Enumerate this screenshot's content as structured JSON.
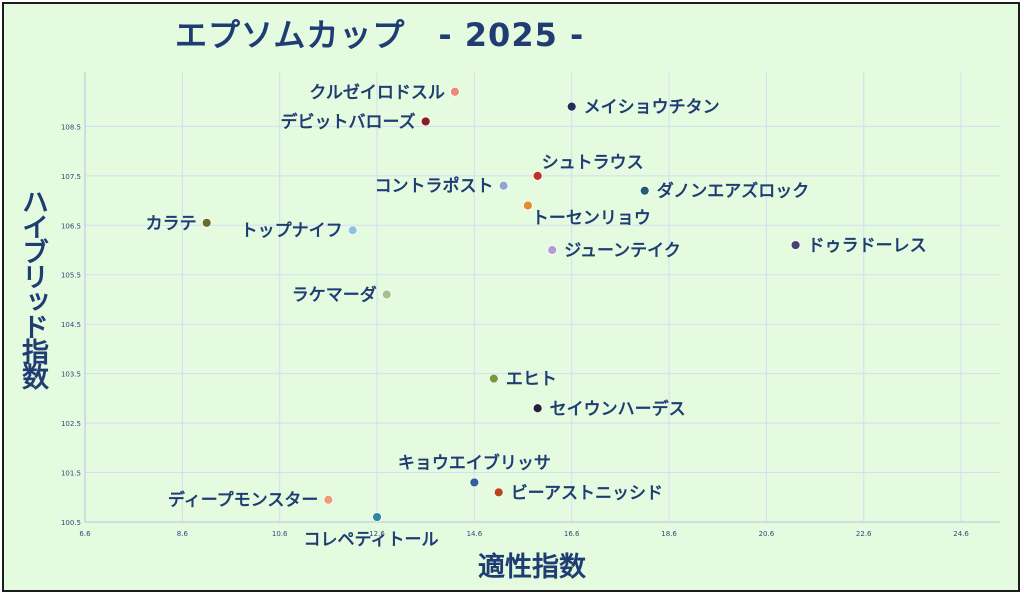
{
  "chart_data": {
    "type": "scatter",
    "title": "エプソムカップ　- 2025 -",
    "xlabel": "適性指数",
    "ylabel": "ハイブリッド指数",
    "xlim": [
      6.6,
      25.4
    ],
    "ylim": [
      100.5,
      109.6
    ],
    "xticks": [
      "6.6",
      "8.6",
      "10.6",
      "12.6",
      "14.6",
      "16.6",
      "18.6",
      "20.6",
      "22.6",
      "24.6"
    ],
    "yticks": [
      "100.5",
      "101.5",
      "102.5",
      "103.5",
      "104.5",
      "105.5",
      "106.5",
      "107.5",
      "108.5"
    ],
    "grid": true,
    "points": [
      {
        "label": "クルゼイロドスル",
        "x": 14.2,
        "y": 109.2,
        "color": "#ee8877",
        "label_side": "left"
      },
      {
        "label": "メイショウチタン",
        "x": 16.6,
        "y": 108.9,
        "color": "#1f2f55",
        "label_side": "right"
      },
      {
        "label": "デビットバローズ",
        "x": 13.6,
        "y": 108.6,
        "color": "#8b1e1e",
        "label_side": "left"
      },
      {
        "label": "シュトラウス",
        "x": 15.9,
        "y": 107.5,
        "color": "#c0302a",
        "label_side": "above-right"
      },
      {
        "label": "コントラポスト",
        "x": 15.2,
        "y": 107.3,
        "color": "#8fa6cf",
        "label_side": "left"
      },
      {
        "label": "ダノンエアズロック",
        "x": 18.1,
        "y": 107.2,
        "color": "#1f5f6e",
        "label_side": "right"
      },
      {
        "label": "トーセンリョウ",
        "x": 15.7,
        "y": 106.9,
        "color": "#e58a2f",
        "label_side": "below-right"
      },
      {
        "label": "カラテ",
        "x": 9.1,
        "y": 106.55,
        "color": "#6b6b2a",
        "label_side": "left"
      },
      {
        "label": "トップナイフ",
        "x": 12.1,
        "y": 106.4,
        "color": "#8fc3dc",
        "label_side": "left"
      },
      {
        "label": "ドゥラドーレス",
        "x": 21.2,
        "y": 106.1,
        "color": "#4b3f72",
        "label_side": "right"
      },
      {
        "label": "ジューンテイク",
        "x": 16.2,
        "y": 106.0,
        "color": "#b49ad6",
        "label_side": "right"
      },
      {
        "label": "ラケマーダ",
        "x": 12.8,
        "y": 105.1,
        "color": "#a7c08a",
        "label_side": "left"
      },
      {
        "label": "エヒト",
        "x": 15.0,
        "y": 103.4,
        "color": "#7a9a3a",
        "label_side": "right"
      },
      {
        "label": "セイウンハーデス",
        "x": 15.9,
        "y": 102.8,
        "color": "#2a1f3a",
        "label_side": "right"
      },
      {
        "label": "キョウエイブリッサ",
        "x": 14.6,
        "y": 101.3,
        "color": "#2f5f9e",
        "label_side": "above"
      },
      {
        "label": "ビーアストニッシド",
        "x": 15.1,
        "y": 101.1,
        "color": "#b5461e",
        "label_side": "right"
      },
      {
        "label": "ディープモンスター",
        "x": 11.6,
        "y": 100.95,
        "color": "#ef9a78",
        "label_side": "left"
      },
      {
        "label": "コレペティトール",
        "x": 12.6,
        "y": 100.6,
        "color": "#2a8aa6",
        "label_side": "below"
      }
    ]
  }
}
